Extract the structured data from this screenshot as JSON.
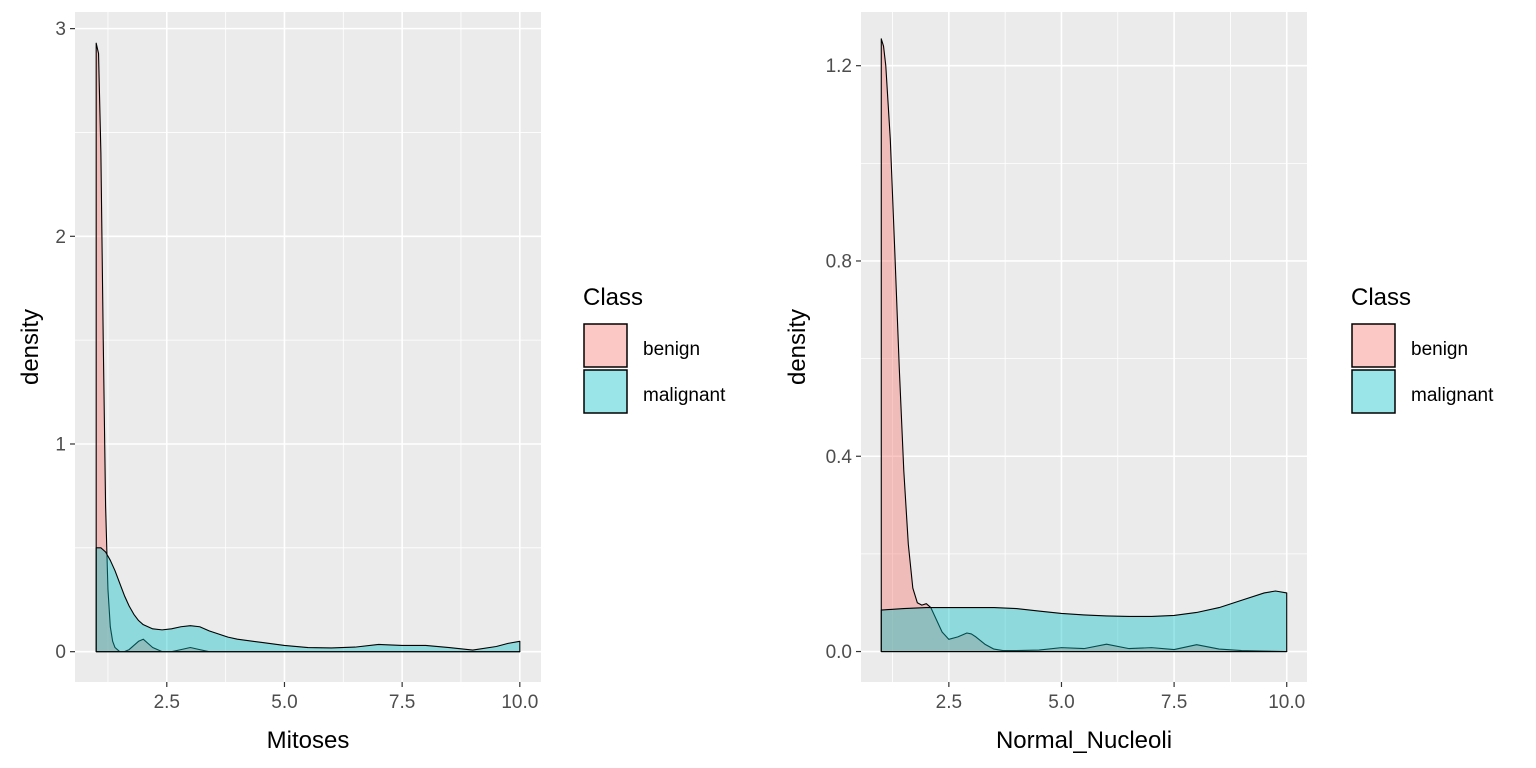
{
  "chart_data": [
    {
      "type": "area",
      "subtype": "density",
      "xlabel": "Mitoses",
      "ylabel": "density",
      "xlim": [
        0.55,
        10.45
      ],
      "ylim": [
        -0.146,
        3.08
      ],
      "xticks": [
        2.5,
        5.0,
        7.5,
        10.0
      ],
      "xtick_labels": [
        "2.5",
        "5.0",
        "7.5",
        "10.0"
      ],
      "yticks": [
        0,
        1,
        2,
        3
      ],
      "ytick_labels": [
        "0",
        "1",
        "2",
        "3"
      ],
      "grid": true,
      "legend": {
        "title": "Class",
        "position": "right",
        "entries": [
          "benign",
          "malignant"
        ]
      },
      "series": [
        {
          "name": "benign",
          "color": "#F8766D",
          "x": [
            1.0,
            1.05,
            1.1,
            1.15,
            1.2,
            1.25,
            1.3,
            1.35,
            1.4,
            1.5,
            1.6,
            1.7,
            1.8,
            1.9,
            2.0,
            2.1,
            2.2,
            2.4,
            2.6,
            2.8,
            3.0,
            3.2,
            3.4,
            4.0,
            5.0,
            6.0,
            7.0,
            8.0,
            9.0,
            10.0
          ],
          "y": [
            2.93,
            2.88,
            2.4,
            1.5,
            0.7,
            0.3,
            0.12,
            0.05,
            0.02,
            0.0,
            0.0,
            0.01,
            0.03,
            0.05,
            0.06,
            0.04,
            0.02,
            0.0,
            0.0,
            0.01,
            0.02,
            0.01,
            0.0,
            0.0,
            0.0,
            0.0,
            0.0,
            0.0,
            0.0,
            0.0
          ]
        },
        {
          "name": "malignant",
          "color": "#00BFC4",
          "x": [
            1.0,
            1.1,
            1.2,
            1.3,
            1.4,
            1.5,
            1.6,
            1.7,
            1.8,
            1.9,
            2.0,
            2.2,
            2.4,
            2.6,
            2.8,
            3.0,
            3.2,
            3.4,
            3.6,
            3.8,
            4.0,
            4.5,
            5.0,
            5.5,
            6.0,
            6.5,
            7.0,
            7.5,
            8.0,
            8.5,
            9.0,
            9.5,
            9.75,
            10.0
          ],
          "y": [
            0.5,
            0.5,
            0.48,
            0.44,
            0.39,
            0.33,
            0.27,
            0.22,
            0.18,
            0.15,
            0.13,
            0.11,
            0.105,
            0.11,
            0.12,
            0.125,
            0.12,
            0.1,
            0.085,
            0.07,
            0.06,
            0.045,
            0.03,
            0.02,
            0.018,
            0.022,
            0.035,
            0.03,
            0.03,
            0.02,
            0.008,
            0.025,
            0.04,
            0.05
          ]
        }
      ]
    },
    {
      "type": "area",
      "subtype": "density",
      "xlabel": "Normal_Nucleoli",
      "ylabel": "density",
      "xlim": [
        0.55,
        10.45
      ],
      "ylim": [
        -0.0624,
        1.31
      ],
      "xticks": [
        2.5,
        5.0,
        7.5,
        10.0
      ],
      "xtick_labels": [
        "2.5",
        "5.0",
        "7.5",
        "10.0"
      ],
      "yticks": [
        0.0,
        0.4,
        0.8,
        1.2
      ],
      "ytick_labels": [
        "0.0",
        "0.4",
        "0.8",
        "1.2"
      ],
      "grid": true,
      "legend": {
        "title": "Class",
        "position": "right",
        "entries": [
          "benign",
          "malignant"
        ]
      },
      "series": [
        {
          "name": "benign",
          "color": "#F8766D",
          "x": [
            1.0,
            1.05,
            1.1,
            1.2,
            1.3,
            1.4,
            1.5,
            1.6,
            1.7,
            1.8,
            1.9,
            2.0,
            2.1,
            2.2,
            2.35,
            2.5,
            2.7,
            2.9,
            3.0,
            3.1,
            3.3,
            3.5,
            3.7,
            4.0,
            4.5,
            5.0,
            5.5,
            6.0,
            6.5,
            7.0,
            7.5,
            8.0,
            8.5,
            9.0,
            9.5,
            10.0
          ],
          "y": [
            1.255,
            1.24,
            1.2,
            1.05,
            0.82,
            0.58,
            0.37,
            0.22,
            0.13,
            0.1,
            0.095,
            0.098,
            0.09,
            0.07,
            0.04,
            0.025,
            0.03,
            0.038,
            0.036,
            0.03,
            0.015,
            0.005,
            0.002,
            0.002,
            0.003,
            0.008,
            0.006,
            0.015,
            0.006,
            0.008,
            0.004,
            0.014,
            0.005,
            0.002,
            0.001,
            0.0
          ]
        },
        {
          "name": "malignant",
          "color": "#00BFC4",
          "x": [
            1.0,
            1.5,
            2.0,
            2.5,
            3.0,
            3.5,
            4.0,
            4.5,
            5.0,
            5.5,
            6.0,
            6.5,
            7.0,
            7.5,
            8.0,
            8.5,
            9.0,
            9.5,
            9.75,
            10.0
          ],
          "y": [
            0.085,
            0.088,
            0.09,
            0.09,
            0.09,
            0.09,
            0.088,
            0.083,
            0.078,
            0.075,
            0.073,
            0.072,
            0.072,
            0.074,
            0.08,
            0.09,
            0.105,
            0.12,
            0.124,
            0.12
          ]
        }
      ]
    }
  ]
}
